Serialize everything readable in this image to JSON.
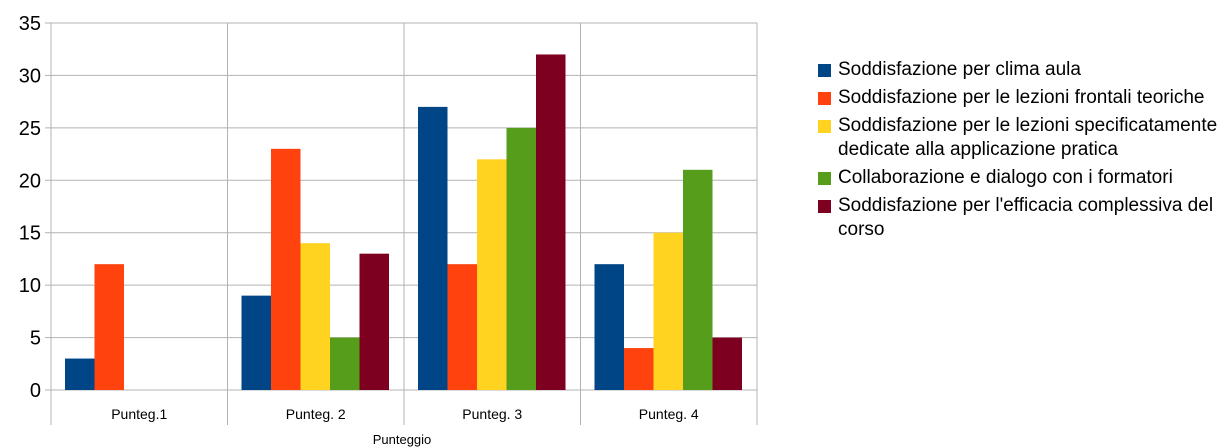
{
  "chart_data": {
    "type": "bar",
    "categories": [
      "Punteg.1",
      "Punteg. 2",
      "Punteg. 3",
      "Punteg. 4"
    ],
    "xlabel": "Punteggio",
    "ylabel": "",
    "ylim": [
      0,
      35
    ],
    "yticks": [
      "0",
      "5",
      "10",
      "15",
      "20",
      "25",
      "30",
      "35"
    ],
    "grid": true,
    "legend_position": "right",
    "series": [
      {
        "name": "Soddisfazione per clima aula",
        "color": "#004586",
        "values": [
          3,
          9,
          27,
          12
        ]
      },
      {
        "name": "Soddisfazione per le lezioni frontali teoriche",
        "color": "#ff420e",
        "values": [
          12,
          23,
          12,
          4
        ]
      },
      {
        "name": "Soddisfazione per le lezioni specificatamente dedicate alla applicazione pratica",
        "color": "#ffd320",
        "values": [
          0,
          14,
          22,
          15
        ]
      },
      {
        "name": "Collaborazione e dialogo con i formatori",
        "color": "#579d1c",
        "values": [
          0,
          5,
          25,
          21
        ]
      },
      {
        "name": "Soddisfazione per l'efficacia complessiva del corso",
        "color": "#7e0021",
        "values": [
          0,
          13,
          32,
          5
        ]
      }
    ]
  }
}
